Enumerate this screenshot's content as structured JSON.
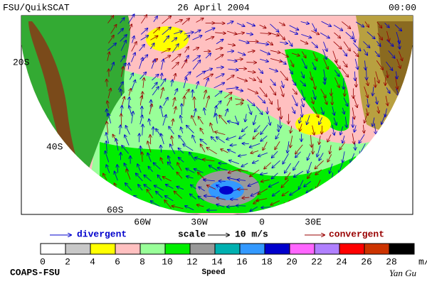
{
  "header": {
    "left": "FSU/QuikSCAT",
    "center": "26 April 2004",
    "right": "00:00"
  },
  "map": {
    "lat_labels": [
      "20S",
      "40S",
      "60S"
    ],
    "lon_labels": [
      "60W",
      "30W",
      "0",
      "30E"
    ]
  },
  "legend": {
    "divergent": "divergent",
    "scale": "scale",
    "scale_value": "10 m/s",
    "convergent": "convergent"
  },
  "colorbar": {
    "title": "Speed",
    "unit": "m/s",
    "ticks": [
      0,
      2,
      4,
      6,
      8,
      10,
      12,
      14,
      16,
      18,
      20,
      22,
      24,
      26,
      28
    ],
    "colors": [
      "#ffffff",
      "#c8c8c8",
      "#ffff00",
      "#ffc0c0",
      "#99ff99",
      "#00ee00",
      "#999999",
      "#00b0b0",
      "#3399ff",
      "#0000cc",
      "#ff66ff",
      "#b080ff",
      "#ff0000",
      "#cc3300",
      "#000000"
    ]
  },
  "footer": {
    "left": "COAPS-FSU",
    "right": "Yan Gu"
  }
}
